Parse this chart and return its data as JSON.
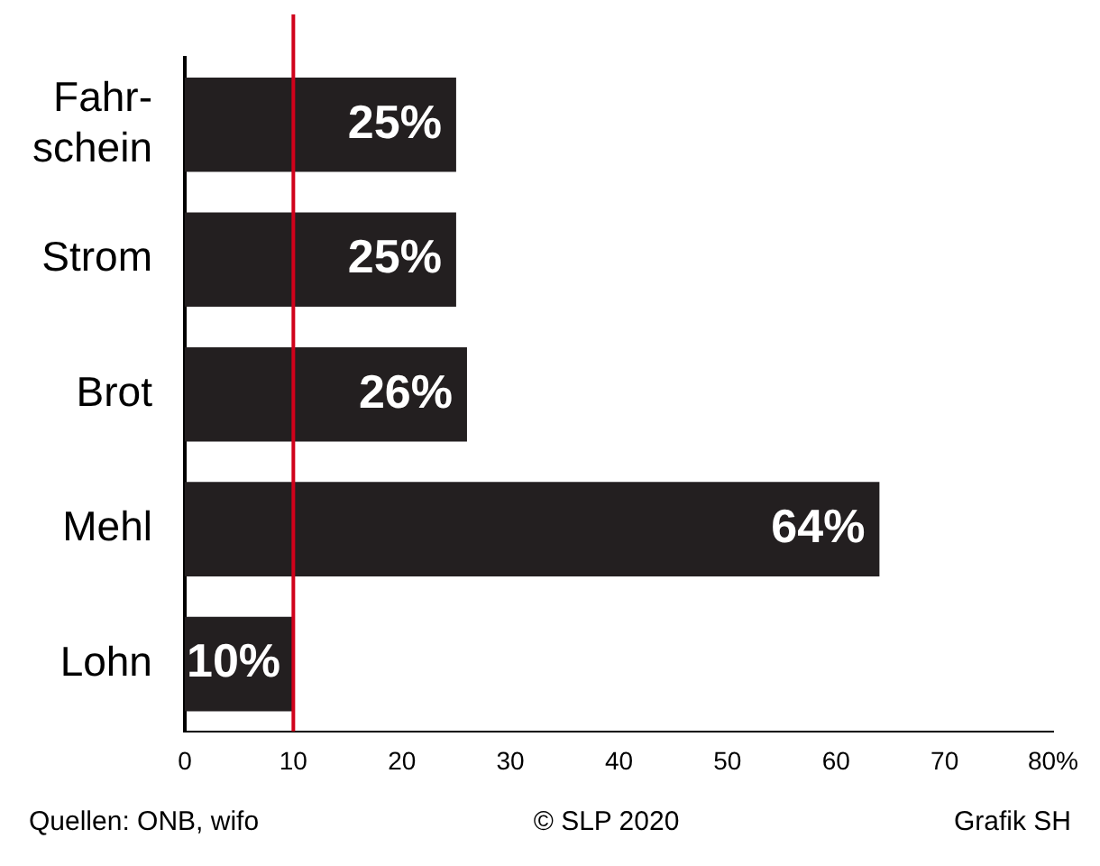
{
  "chart_data": {
    "type": "bar",
    "orientation": "horizontal",
    "categories": [
      "Fahr-\nschein",
      "Strom",
      "Brot",
      "Mehl",
      "Lohn"
    ],
    "values": [
      25,
      25,
      26,
      64,
      10
    ],
    "value_labels": [
      "25%",
      "25%",
      "26%",
      "64%",
      "10%"
    ],
    "color": "#231f20",
    "xlim": [
      0,
      80
    ],
    "xticks": [
      0,
      10,
      20,
      30,
      40,
      50,
      60,
      70,
      {
        "value": 80,
        "label": "80%"
      }
    ],
    "grid": false,
    "legend": false,
    "ref_lines": [
      {
        "axis": "x",
        "value": 10,
        "color": "#d0021b"
      }
    ],
    "annotations": [
      "Quellen: ONB, wifo",
      "© SLP 2020",
      "Grafik SH"
    ]
  }
}
